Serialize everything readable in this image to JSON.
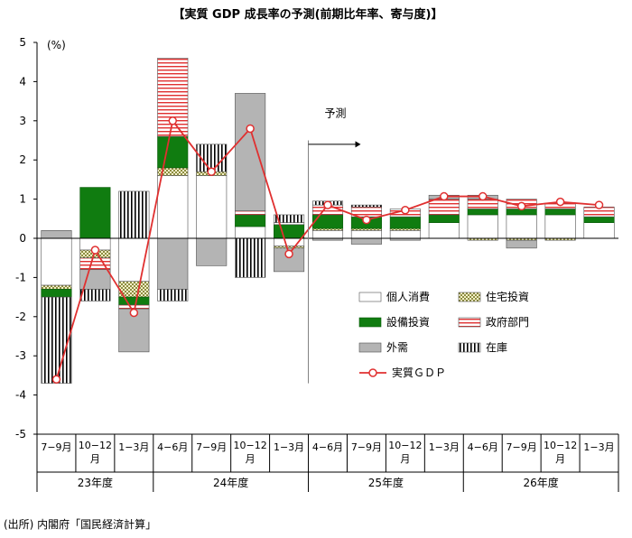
{
  "chart_data": {
    "type": "bar",
    "title": "【実質 GDP 成長率の予測(前期比年率、寄与度)】",
    "ylabel": "(%)",
    "ylim": [
      -5,
      5
    ],
    "yticks": [
      5,
      4,
      3,
      2,
      1,
      0,
      -1,
      -2,
      -3,
      -4,
      -5
    ],
    "categories": [
      "7−9月",
      "10−12 月",
      "1−3月",
      "4−6月",
      "7−9月",
      "10−12 月",
      "1−3月",
      "4−6月",
      "7−9月",
      "10−12 月",
      "1−3月",
      "4−6月",
      "7−9月",
      "10−12 月",
      "1−3月"
    ],
    "fiscal_years": [
      {
        "label": "23年度",
        "count": 3
      },
      {
        "label": "24年度",
        "count": 4
      },
      {
        "label": "25年度",
        "count": 4
      },
      {
        "label": "26年度",
        "count": 4
      }
    ],
    "forecast_label": "予測",
    "forecast_start_index": 7,
    "series": [
      {
        "name": "個人消費",
        "color": "#ffffff",
        "pattern": "white",
        "values": [
          -1.2,
          -0.3,
          -1.1,
          1.6,
          1.6,
          0.3,
          -0.2,
          0.2,
          0.2,
          0.2,
          0.4,
          0.6,
          0.6,
          0.6,
          0.4
        ]
      },
      {
        "name": "住宅投資",
        "color": "#c8c88c",
        "pattern": "check",
        "values": [
          -0.1,
          -0.2,
          -0.4,
          0.2,
          0.1,
          0.0,
          -0.05,
          0.05,
          0.05,
          0.05,
          0.0,
          -0.05,
          -0.05,
          -0.05,
          0.0
        ]
      },
      {
        "name": "設備投資",
        "color": "#107c10",
        "pattern": "green",
        "values": [
          -0.2,
          1.3,
          -0.2,
          0.8,
          0.0,
          0.3,
          0.35,
          0.35,
          0.3,
          0.3,
          0.2,
          0.15,
          0.15,
          0.15,
          0.15
        ]
      },
      {
        "name": "政府部門",
        "color": "#e03030",
        "pattern": "hlines",
        "values": [
          0.0,
          -0.3,
          -0.1,
          2.0,
          0.0,
          0.1,
          0.05,
          0.25,
          0.25,
          0.2,
          0.4,
          0.25,
          0.25,
          0.15,
          0.25
        ]
      },
      {
        "name": "外需",
        "color": "#b4b4b4",
        "pattern": "gray",
        "values": [
          0.2,
          -0.5,
          -1.1,
          -1.3,
          -0.7,
          3.0,
          -0.6,
          -0.05,
          -0.15,
          -0.05,
          0.1,
          0.1,
          -0.2,
          0.0,
          0.0
        ]
      },
      {
        "name": "在庫",
        "color": "#000000",
        "pattern": "vlines",
        "values": [
          -2.2,
          -0.3,
          1.2,
          -0.3,
          0.7,
          -1.0,
          0.2,
          0.1,
          0.05,
          0.0,
          0.0,
          0.0,
          0.0,
          0.0,
          0.0
        ]
      }
    ],
    "line": {
      "name": "実質ＧＤＰ",
      "color": "#e03030",
      "values": [
        -3.6,
        -0.3,
        -1.9,
        3.0,
        1.7,
        2.8,
        -0.4,
        0.85,
        0.47,
        0.72,
        1.07,
        1.07,
        0.82,
        0.93,
        0.85
      ]
    },
    "legend_placement": "bottom-right"
  },
  "source": "(出所) 内閣府「国民経済計算」"
}
